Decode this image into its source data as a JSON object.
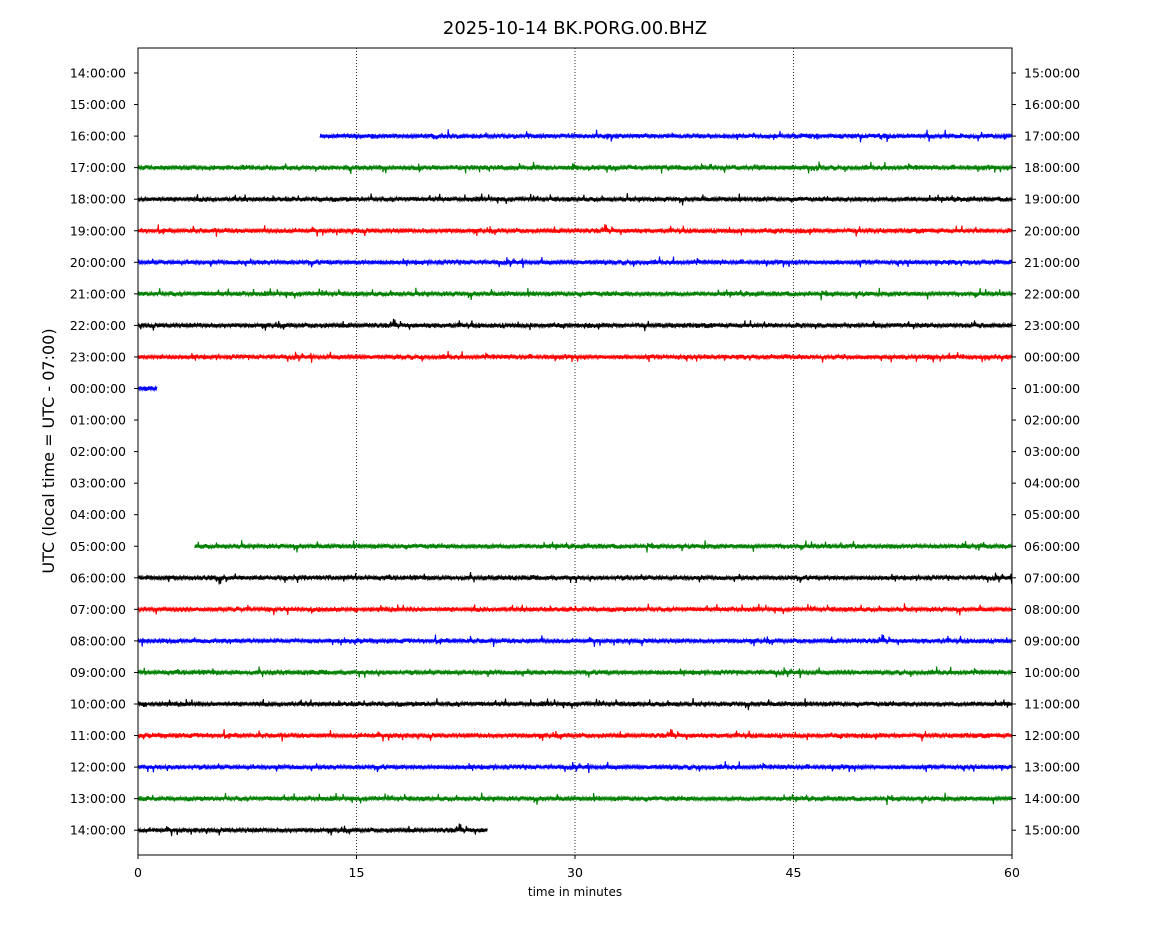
{
  "chart_data": {
    "type": "line",
    "title": "2025-10-14 BK.PORG.00.BHZ",
    "xlabel": "time in minutes",
    "ylabel": "UTC (local time = UTC - 07:00)",
    "xlim": [
      0,
      60
    ],
    "x_ticks": [
      0,
      15,
      30,
      45,
      60
    ],
    "x_tick_labels": [
      "0",
      "15",
      "30",
      "45",
      "60"
    ],
    "vertical_grid_at": [
      15,
      30,
      45
    ],
    "grid": "vertical dotted",
    "left_tick_labels": [
      "14:00:00",
      "15:00:00",
      "16:00:00",
      "17:00:00",
      "18:00:00",
      "19:00:00",
      "20:00:00",
      "21:00:00",
      "22:00:00",
      "23:00:00",
      "00:00:00",
      "01:00:00",
      "02:00:00",
      "03:00:00",
      "04:00:00",
      "05:00:00",
      "06:00:00",
      "07:00:00",
      "08:00:00",
      "09:00:00",
      "10:00:00",
      "11:00:00",
      "12:00:00",
      "13:00:00",
      "14:00:00"
    ],
    "right_tick_labels": [
      "15:00:00",
      "16:00:00",
      "17:00:00",
      "18:00:00",
      "19:00:00",
      "20:00:00",
      "21:00:00",
      "22:00:00",
      "23:00:00",
      "00:00:00",
      "01:00:00",
      "02:00:00",
      "03:00:00",
      "04:00:00",
      "05:00:00",
      "06:00:00",
      "07:00:00",
      "08:00:00",
      "09:00:00",
      "10:00:00",
      "11:00:00",
      "12:00:00",
      "13:00:00",
      "14:00:00",
      "15:00:00"
    ],
    "colors": [
      "#0000ff",
      "#008000",
      "#000000",
      "#ff0000"
    ],
    "traces": [
      {
        "row": 2,
        "start_min": 12.5,
        "end_min": 60,
        "color": "#0000ff"
      },
      {
        "row": 3,
        "start_min": 0,
        "end_min": 60,
        "color": "#008000"
      },
      {
        "row": 4,
        "start_min": 0,
        "end_min": 60,
        "color": "#000000"
      },
      {
        "row": 5,
        "start_min": 0,
        "end_min": 60,
        "color": "#ff0000"
      },
      {
        "row": 6,
        "start_min": 0,
        "end_min": 60,
        "color": "#0000ff"
      },
      {
        "row": 7,
        "start_min": 0,
        "end_min": 60,
        "color": "#008000"
      },
      {
        "row": 8,
        "start_min": 0,
        "end_min": 60,
        "color": "#000000"
      },
      {
        "row": 9,
        "start_min": 0,
        "end_min": 60,
        "color": "#ff0000"
      },
      {
        "row": 10,
        "start_min": 0,
        "end_min": 1.3,
        "color": "#0000ff"
      },
      {
        "row": 15,
        "start_min": 3.9,
        "end_min": 60,
        "color": "#008000"
      },
      {
        "row": 16,
        "start_min": 0,
        "end_min": 60,
        "color": "#000000"
      },
      {
        "row": 17,
        "start_min": 0,
        "end_min": 60,
        "color": "#ff0000"
      },
      {
        "row": 18,
        "start_min": 0,
        "end_min": 60,
        "color": "#0000ff"
      },
      {
        "row": 19,
        "start_min": 0,
        "end_min": 60,
        "color": "#008000"
      },
      {
        "row": 20,
        "start_min": 0,
        "end_min": 60,
        "color": "#000000"
      },
      {
        "row": 21,
        "start_min": 0,
        "end_min": 60,
        "color": "#ff0000"
      },
      {
        "row": 22,
        "start_min": 0,
        "end_min": 60,
        "color": "#0000ff"
      },
      {
        "row": 23,
        "start_min": 0,
        "end_min": 60,
        "color": "#008000"
      },
      {
        "row": 24,
        "start_min": 0,
        "end_min": 24,
        "color": "#000000"
      }
    ]
  }
}
